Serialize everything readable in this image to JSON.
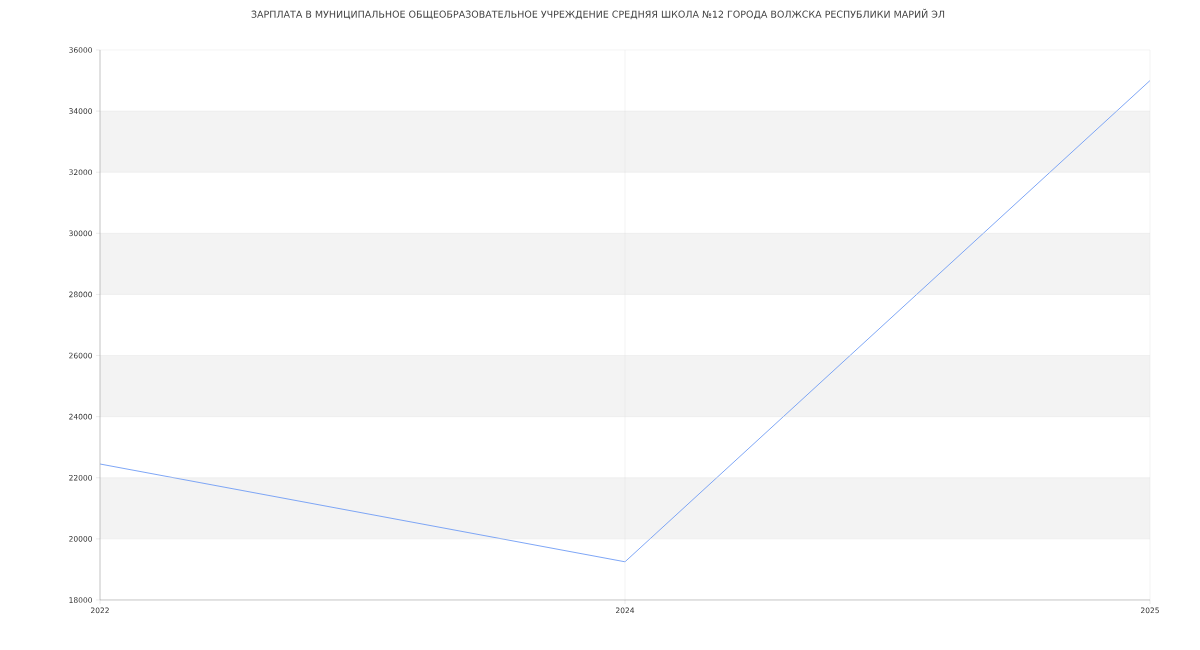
{
  "chart_data": {
    "type": "line",
    "title": "ЗАРПЛАТА В МУНИЦИПАЛЬНОЕ ОБЩЕОБРАЗОВАТЕЛЬНОЕ УЧРЕЖДЕНИЕ СРЕДНЯЯ ШКОЛА №12 ГОРОДА ВОЛЖСКА РЕСПУБЛИКИ МАРИЙ ЭЛ",
    "categories": [
      "2022",
      "2024",
      "2025"
    ],
    "series": [
      {
        "color": "#6f9cf5",
        "values": [
          22450,
          19250,
          35000
        ]
      }
    ],
    "ylim": [
      18000,
      36000
    ],
    "yticks": [
      18000,
      20000,
      22000,
      24000,
      26000,
      28000,
      30000,
      32000,
      34000,
      36000
    ],
    "bands": [
      {
        "axis": "y",
        "from": 20000,
        "to": 22000,
        "color": "#f3f3f3"
      },
      {
        "axis": "y",
        "from": 24000,
        "to": 26000,
        "color": "#f3f3f3"
      },
      {
        "axis": "y",
        "from": 28000,
        "to": 30000,
        "color": "#f3f3f3"
      },
      {
        "axis": "y",
        "from": 32000,
        "to": 34000,
        "color": "#f3f3f3"
      }
    ],
    "grid": true
  }
}
